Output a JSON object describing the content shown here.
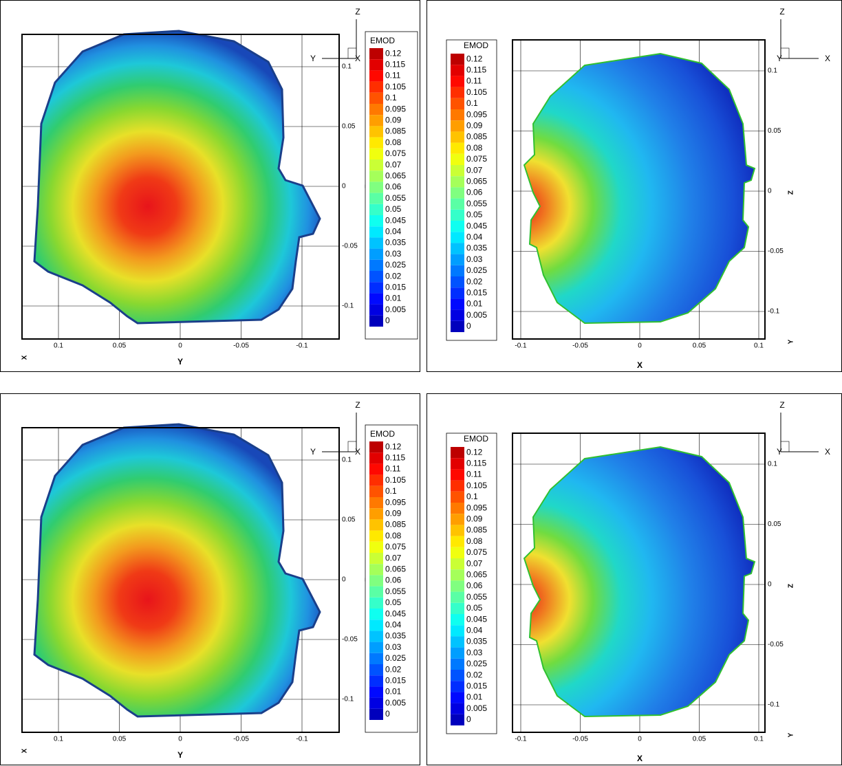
{
  "panels": [
    {
      "triad": [
        "Z",
        "Y",
        "X"
      ],
      "x_axis_title": "Y",
      "corner_axis_title": "X",
      "y_axis_title": "Z",
      "x_ticks": [
        0.1,
        0.05,
        0,
        -0.05,
        -0.1
      ],
      "y_ticks": [
        0.1,
        0.05,
        0,
        -0.05,
        -0.1
      ],
      "legend": {
        "title": "EMOD",
        "levels": [
          0.12,
          0.115,
          0.11,
          0.105,
          0.1,
          0.095,
          0.09,
          0.085,
          0.08,
          0.075,
          0.07,
          0.065,
          0.06,
          0.055,
          0.05,
          0.045,
          0.04,
          0.035,
          0.03,
          0.025,
          0.02,
          0.015,
          0.01,
          0.005,
          0
        ]
      }
    },
    {
      "triad": [
        "Z",
        "Y",
        "X"
      ],
      "x_axis_title": "X",
      "corner_axis_title": "Y",
      "y_axis_title": "Z",
      "x_ticks": [
        -0.1,
        -0.05,
        0,
        0.05,
        0.1
      ],
      "y_ticks": [
        0.1,
        0.05,
        0,
        -0.05,
        -0.1
      ],
      "legend": {
        "title": "EMOD",
        "levels": [
          0.12,
          0.115,
          0.11,
          0.105,
          0.1,
          0.095,
          0.09,
          0.085,
          0.08,
          0.075,
          0.07,
          0.065,
          0.06,
          0.055,
          0.05,
          0.045,
          0.04,
          0.035,
          0.03,
          0.025,
          0.02,
          0.015,
          0.01,
          0.005,
          0
        ]
      }
    },
    {
      "triad": [
        "Z",
        "Y",
        "X"
      ],
      "x_axis_title": "Y",
      "corner_axis_title": "X",
      "y_axis_title": "Z",
      "x_ticks": [
        0.1,
        0.05,
        0,
        -0.05,
        -0.1
      ],
      "y_ticks": [
        0.1,
        0.05,
        0,
        -0.05,
        -0.1
      ],
      "legend": {
        "title": "EMOD",
        "levels": [
          0.12,
          0.115,
          0.11,
          0.105,
          0.1,
          0.095,
          0.09,
          0.085,
          0.08,
          0.075,
          0.07,
          0.065,
          0.06,
          0.055,
          0.05,
          0.045,
          0.04,
          0.035,
          0.03,
          0.025,
          0.02,
          0.015,
          0.01,
          0.005,
          0
        ]
      }
    },
    {
      "triad": [
        "Z",
        "Y",
        "X"
      ],
      "x_axis_title": "X",
      "corner_axis_title": "Y",
      "y_axis_title": "Z",
      "x_ticks": [
        -0.1,
        -0.05,
        0,
        0.05,
        0.1
      ],
      "y_ticks": [
        0.1,
        0.05,
        0,
        -0.05,
        -0.1
      ],
      "legend": {
        "title": "EMOD",
        "levels": [
          0.12,
          0.115,
          0.11,
          0.105,
          0.1,
          0.095,
          0.09,
          0.085,
          0.08,
          0.075,
          0.07,
          0.065,
          0.06,
          0.055,
          0.05,
          0.045,
          0.04,
          0.035,
          0.03,
          0.025,
          0.02,
          0.015,
          0.01,
          0.005,
          0
        ]
      }
    }
  ]
}
